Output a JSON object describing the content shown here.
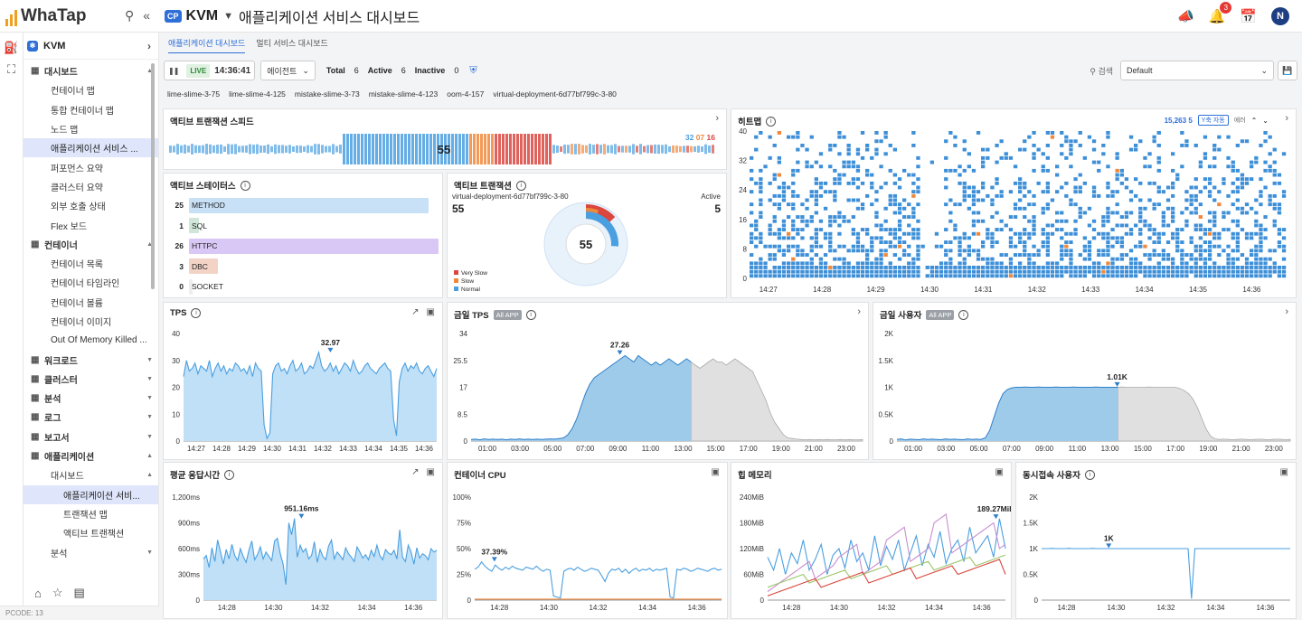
{
  "app": {
    "logo_text": "WhaTap",
    "cp_badge": "CP",
    "project": "KVM",
    "title": "애플리케이션 서비스 대시보드",
    "notif_count": "3",
    "avatar": "N"
  },
  "sidebar": {
    "project_label": "KVM",
    "items": [
      {
        "label": "대시보드",
        "kind": "sec",
        "icon": "grid-icon"
      },
      {
        "label": "컨테이너 맵",
        "kind": "sub"
      },
      {
        "label": "통합 컨테이너 맵",
        "kind": "sub"
      },
      {
        "label": "노드 맵",
        "kind": "sub"
      },
      {
        "label": "애플리케이션 서비스 ...",
        "kind": "sub",
        "active": true
      },
      {
        "label": "퍼포먼스 요약",
        "kind": "sub"
      },
      {
        "label": "클러스터 요약",
        "kind": "sub"
      },
      {
        "label": "외부 호출 상태",
        "kind": "sub"
      },
      {
        "label": "Flex 보드",
        "kind": "sub"
      },
      {
        "label": "컨테이너",
        "kind": "sec",
        "icon": "container-icon"
      },
      {
        "label": "컨테이너 목록",
        "kind": "sub"
      },
      {
        "label": "컨테이너 타임라인",
        "kind": "sub"
      },
      {
        "label": "컨테이너 볼륨",
        "kind": "sub"
      },
      {
        "label": "컨테이너 이미지",
        "kind": "sub"
      },
      {
        "label": "Out Of Memory Killed ...",
        "kind": "sub"
      },
      {
        "label": "워크로드",
        "kind": "sec",
        "icon": "hexagon-icon"
      },
      {
        "label": "클러스터",
        "kind": "sec",
        "icon": "cluster-icon"
      },
      {
        "label": "분석",
        "kind": "sec",
        "icon": "chart-icon"
      },
      {
        "label": "로그",
        "kind": "sec",
        "icon": "log-icon"
      },
      {
        "label": "보고서",
        "kind": "sec",
        "icon": "report-icon"
      },
      {
        "label": "애플리케이션",
        "kind": "sec",
        "icon": "code-icon"
      },
      {
        "label": "대시보드",
        "kind": "sub"
      },
      {
        "label": "애플리케이션 서비...",
        "kind": "sub2",
        "active": true
      },
      {
        "label": "트랜잭션 맵",
        "kind": "sub2"
      },
      {
        "label": "액티브 트랜잭션",
        "kind": "sub2"
      },
      {
        "label": "분석",
        "kind": "sub"
      }
    ],
    "pcode": "PCODE: 13"
  },
  "tabs": [
    {
      "label": "애플리케이션 대시보드",
      "active": true
    },
    {
      "label": "멀티 서비스 대시보드",
      "active": false
    }
  ],
  "controls": {
    "live": "LIVE",
    "time": "14:36:41",
    "agent_label": "에이전트",
    "total_label": "Total",
    "total": "6",
    "active_label": "Active",
    "active": "6",
    "inactive_label": "Inactive",
    "inactive": "0",
    "search_label": "검색",
    "preset": "Default"
  },
  "agents": [
    "lime-slime-3-75",
    "lime-slime-4-125",
    "mistake-slime-3-73",
    "mistake-slime-4-123",
    "oom-4-157",
    "virtual-deployment-6d77bf799c-3-80"
  ],
  "panels": {
    "speed": {
      "title": "액티브 트랜잭션 스피드",
      "center": "55",
      "m1": "32",
      "m2": "07",
      "m3": "16"
    },
    "heatmap": {
      "title": "히트맵",
      "count": "15,263",
      "unit": "5",
      "yaxis_tag": "Y축 자동",
      "err": "에러"
    },
    "status": {
      "title": "액티브 스테이터스"
    },
    "active_tx": {
      "title": "액티브 트랜잭션",
      "agent": "virtual-deployment-6d77bf799c-3-80",
      "value": "55",
      "active_label": "Active",
      "active_value": "5",
      "center": "55",
      "legend": [
        "Very Slow",
        "Slow",
        "Normal"
      ]
    },
    "tps": {
      "title": "TPS"
    },
    "today_tps": {
      "title": "금일 TPS",
      "tag": "All APP"
    },
    "today_users": {
      "title": "금일 사용자",
      "tag": "All APP"
    },
    "resp": {
      "title": "평균 응답시간"
    },
    "cpu": {
      "title": "컨테이너 CPU"
    },
    "heap": {
      "title": "힙 메모리"
    },
    "concurrent": {
      "title": "동시접속 사용자"
    }
  },
  "colors": {
    "accent": "#2f6fd8",
    "series": "#4a9fe0",
    "fill": "#bfe0f7",
    "very_slow": "#d9473f",
    "slow": "#f0883a",
    "normal": "#4a9fe0"
  },
  "chart_data": [
    {
      "id": "status",
      "type": "bar",
      "categories": [
        "METHOD",
        "SQL",
        "HTTPC",
        "DBC",
        "SOCKET"
      ],
      "values": [
        25,
        1,
        26,
        3,
        0
      ],
      "colors": [
        "#c8e1f7",
        "#cfe6d8",
        "#d9c8f5",
        "#f2d3c6",
        "#eeeeee"
      ]
    },
    {
      "id": "active_donut",
      "type": "pie",
      "categories": [
        "Very Slow",
        "Slow",
        "Normal"
      ],
      "values": [
        16,
        7,
        32
      ]
    },
    {
      "id": "heatmap",
      "type": "scatter",
      "ylim": [
        0,
        40
      ],
      "yticks": [
        0,
        8,
        16,
        24,
        32,
        40
      ],
      "xticks": [
        "14:27",
        "14:28",
        "14:29",
        "14:30",
        "14:31",
        "14:32",
        "14:33",
        "14:34",
        "14:35",
        "14:36"
      ]
    },
    {
      "id": "tps",
      "type": "area",
      "ylim": [
        0,
        40
      ],
      "yticks": [
        "0",
        "10",
        "20",
        "30",
        "40"
      ],
      "xticks": [
        "14:27",
        "14:28",
        "14:29",
        "14:30",
        "14:31",
        "14:32",
        "14:33",
        "14:34",
        "14:35",
        "14:36"
      ],
      "peak": {
        "label": "32.97",
        "x": 0.58,
        "y": 32.97
      },
      "values": [
        24,
        30,
        26,
        27,
        29,
        25,
        28,
        27,
        26,
        30,
        24,
        27,
        29,
        26,
        28,
        25,
        27,
        26,
        29,
        28,
        26,
        27,
        25,
        28,
        24,
        29,
        27,
        26,
        6,
        1,
        3,
        25,
        28,
        29,
        26,
        27,
        25,
        28,
        30,
        26,
        27,
        29,
        25,
        26,
        28,
        27,
        30,
        33,
        28,
        26,
        27,
        29,
        26,
        28,
        25,
        27,
        29,
        28,
        26,
        30,
        27,
        25,
        26,
        28,
        29,
        27,
        26,
        25,
        27,
        28,
        29,
        27,
        26,
        8,
        2,
        22,
        27,
        29,
        26,
        28,
        27,
        29,
        26,
        25,
        27,
        28,
        26,
        24,
        27
      ]
    },
    {
      "id": "today_tps",
      "type": "area",
      "ylim": [
        0,
        34
      ],
      "yticks": [
        "0",
        "8.5",
        "17",
        "25.5",
        "34"
      ],
      "xticks": [
        "01:00",
        "03:00",
        "05:00",
        "07:00",
        "09:00",
        "11:00",
        "13:00",
        "15:00",
        "17:00",
        "19:00",
        "21:00",
        "23:00"
      ],
      "peak": {
        "label": "27.26",
        "x": 0.38,
        "y": 27.26
      },
      "current_fraction": 0.56,
      "values": [
        0.5,
        0.6,
        0.4,
        0.7,
        0.5,
        0.6,
        0.5,
        0.6,
        0.4,
        0.6,
        0.5,
        0.7,
        0.5,
        0.6,
        0.5,
        0.6,
        0.5,
        0.6,
        0.7,
        0.6,
        0.8,
        1,
        2,
        4,
        7,
        11,
        15,
        18,
        20,
        21,
        22,
        23,
        24,
        25,
        26,
        27,
        26,
        25,
        27,
        26,
        25,
        24,
        25,
        24,
        25,
        26,
        25,
        24,
        25,
        26,
        25,
        24,
        23,
        24,
        25,
        26,
        25,
        25,
        24,
        25,
        26,
        25,
        24,
        23,
        22,
        19,
        16,
        13,
        9,
        6,
        4,
        2,
        1,
        0.8,
        0.6,
        0.5,
        0.4,
        0.5,
        0.4,
        0.5,
        0.4,
        0.5,
        0.4,
        0.4,
        0.5,
        0.4,
        0.5,
        0.4,
        0.4,
        0.5
      ]
    },
    {
      "id": "today_users",
      "type": "area",
      "ylim": [
        0,
        2000
      ],
      "yticks": [
        "0",
        "0.5K",
        "1K",
        "1.5K",
        "2K"
      ],
      "xticks": [
        "01:00",
        "03:00",
        "05:00",
        "07:00",
        "09:00",
        "11:00",
        "13:00",
        "15:00",
        "17:00",
        "19:00",
        "21:00",
        "23:00"
      ],
      "peak": {
        "label": "1.01K",
        "x": 0.56,
        "y": 1010
      },
      "current_fraction": 0.56,
      "values": [
        30,
        40,
        20,
        35,
        30,
        25,
        40,
        30,
        35,
        30,
        25,
        40,
        30,
        35,
        30,
        25,
        40,
        30,
        35,
        30,
        60,
        200,
        450,
        700,
        880,
        960,
        990,
        1000,
        1000,
        1005,
        1000,
        1000,
        1005,
        1000,
        1000,
        1000,
        1005,
        1000,
        1000,
        1000,
        1005,
        1000,
        1000,
        1000,
        1000,
        1005,
        1000,
        1000,
        1000,
        1000,
        1000,
        1005,
        1000,
        1000,
        1000,
        1000,
        1000,
        1005,
        1000,
        1000,
        1000,
        1000,
        1000,
        1000,
        980,
        940,
        880,
        780,
        620,
        420,
        220,
        90,
        40,
        30,
        35,
        30,
        25,
        30,
        35,
        30,
        25,
        30,
        35,
        30,
        25,
        30,
        35,
        30,
        25,
        30
      ]
    },
    {
      "id": "resp",
      "type": "area",
      "ylim": [
        0,
        1200
      ],
      "yticks": [
        "0",
        "300ms",
        "600ms",
        "900ms",
        "1,200ms"
      ],
      "xticks": [
        "14:28",
        "14:30",
        "14:32",
        "14:34",
        "14:36"
      ],
      "peak": {
        "label": "951.16ms",
        "x": 0.42,
        "y": 951
      },
      "values": [
        480,
        520,
        380,
        610,
        450,
        700,
        560,
        420,
        590,
        480,
        650,
        520,
        460,
        600,
        510,
        440,
        580,
        690,
        470,
        530,
        620,
        480,
        560,
        510,
        460,
        690,
        720,
        540,
        420,
        180,
        900,
        760,
        951,
        500,
        640,
        560,
        600,
        480,
        520,
        680,
        440,
        590,
        510,
        470,
        630,
        700,
        480,
        560,
        520,
        470,
        610,
        540,
        500,
        450,
        620,
        560,
        490,
        530,
        470,
        580,
        510,
        640,
        520,
        470,
        590,
        550,
        530,
        580,
        480,
        820,
        500,
        450,
        640,
        560,
        420,
        610,
        490,
        540,
        520,
        470,
        600,
        560,
        580
      ]
    },
    {
      "id": "cpu",
      "type": "line",
      "ylim": [
        0,
        100
      ],
      "yticks": [
        "0",
        "25%",
        "50%",
        "75%",
        "100%"
      ],
      "xticks": [
        "14:28",
        "14:30",
        "14:32",
        "14:34",
        "14:36"
      ],
      "peak": {
        "label": "37.39%",
        "x": 0.08,
        "y": 37.39
      },
      "series": [
        {
          "values": [
            30,
            32,
            37,
            33,
            30,
            28,
            34,
            31,
            29,
            32,
            30,
            33,
            31,
            30,
            29,
            32,
            31,
            30,
            33,
            30,
            28,
            30,
            29,
            4,
            3,
            2,
            28,
            30,
            31,
            29,
            32,
            30,
            28,
            29,
            31,
            30,
            29,
            24,
            18,
            26,
            30,
            29,
            31,
            27,
            30,
            26,
            29,
            31,
            28,
            30,
            29,
            31,
            28,
            30,
            29,
            30,
            31,
            3,
            2,
            30,
            29,
            31,
            30,
            28,
            29,
            31,
            30,
            29,
            28,
            30,
            31,
            29,
            30
          ]
        },
        {
          "values": [
            1,
            1,
            1,
            1,
            1,
            1,
            1,
            1,
            1,
            1,
            1,
            1,
            1,
            1,
            1,
            1,
            1,
            1,
            1,
            1,
            1,
            1,
            1,
            1,
            1,
            1,
            1,
            1,
            1,
            1,
            1,
            1,
            1,
            1,
            1,
            1,
            1,
            1,
            1,
            1,
            1,
            1,
            1,
            1,
            1,
            1,
            1,
            1,
            1,
            1,
            1,
            1,
            1,
            1,
            1,
            1,
            1,
            1,
            1,
            1,
            1,
            1,
            1,
            1,
            1,
            1,
            1,
            1,
            1,
            1,
            1,
            1,
            1
          ]
        }
      ]
    },
    {
      "id": "heap",
      "type": "line",
      "ylim": [
        0,
        240
      ],
      "yticks": [
        "0",
        "60MiB",
        "120MiB",
        "180MiB",
        "240MiB"
      ],
      "xticks": [
        "14:28",
        "14:30",
        "14:32",
        "14:34",
        "14:36"
      ],
      "peak": {
        "label": "189.27MiB",
        "x": 0.96,
        "y": 189.27
      },
      "series": [
        {
          "values": [
            100,
            70,
            120,
            60,
            110,
            85,
            140,
            70,
            95,
            130,
            60,
            105,
            120,
            75,
            140,
            90,
            110,
            70,
            150,
            80,
            125,
            95,
            140,
            70,
            110,
            150,
            80,
            130,
            100,
            160,
            85,
            120,
            140,
            90,
            170,
            110,
            130,
            150,
            100,
            190,
            120
          ]
        },
        {
          "values": [
            20,
            30,
            40,
            50,
            60,
            70,
            80,
            90,
            50,
            60,
            70,
            80,
            100,
            110,
            120,
            130,
            60,
            70,
            80,
            90,
            140,
            150,
            160,
            170,
            90,
            100,
            110,
            120,
            180,
            190,
            200,
            110,
            120,
            130,
            140,
            150,
            160,
            170,
            180,
            120,
            130
          ]
        },
        {
          "values": [
            30,
            35,
            40,
            45,
            50,
            55,
            60,
            40,
            45,
            50,
            55,
            60,
            65,
            70,
            50,
            55,
            60,
            65,
            70,
            75,
            80,
            60,
            65,
            70,
            75,
            80,
            85,
            90,
            70,
            75,
            80,
            85,
            90,
            95,
            100,
            80,
            85,
            90,
            95,
            100,
            105
          ]
        },
        {
          "values": [
            10,
            15,
            20,
            25,
            30,
            35,
            40,
            45,
            50,
            30,
            35,
            40,
            45,
            50,
            55,
            60,
            65,
            40,
            45,
            50,
            55,
            60,
            65,
            70,
            75,
            50,
            55,
            60,
            65,
            70,
            75,
            80,
            60,
            65,
            70,
            75,
            80,
            85,
            90,
            95,
            60
          ]
        }
      ]
    },
    {
      "id": "concurrent",
      "type": "line",
      "ylim": [
        0,
        2000
      ],
      "yticks": [
        "0",
        "0.5K",
        "1K",
        "1.5K",
        "2K"
      ],
      "xticks": [
        "14:28",
        "14:30",
        "14:32",
        "14:34",
        "14:36"
      ],
      "peak": {
        "label": "1K",
        "x": 0.27,
        "y": 1010
      },
      "values": [
        1000,
        1000,
        1000,
        1005,
        1000,
        1000,
        1000,
        1000,
        1005,
        1000,
        1000,
        1000,
        1000,
        1000,
        1000,
        1005,
        1000,
        1000,
        1000,
        1000,
        1000,
        1000,
        1000,
        1000,
        1000,
        1000,
        1000,
        1000,
        1000,
        1000,
        1000,
        1000,
        1000,
        1000,
        1000,
        1000,
        1000,
        1000,
        1000,
        1000,
        1000,
        1000,
        1000,
        1000,
        30,
        1000,
        1000,
        1000,
        1000,
        1000,
        1000,
        1000,
        1000,
        1000,
        1000,
        1000,
        1000,
        1000,
        1000,
        1000,
        1000,
        1000,
        1000,
        1000,
        1000,
        1000,
        1000,
        1000,
        1000,
        1000,
        1000,
        1000,
        1000,
        1000
      ]
    }
  ]
}
